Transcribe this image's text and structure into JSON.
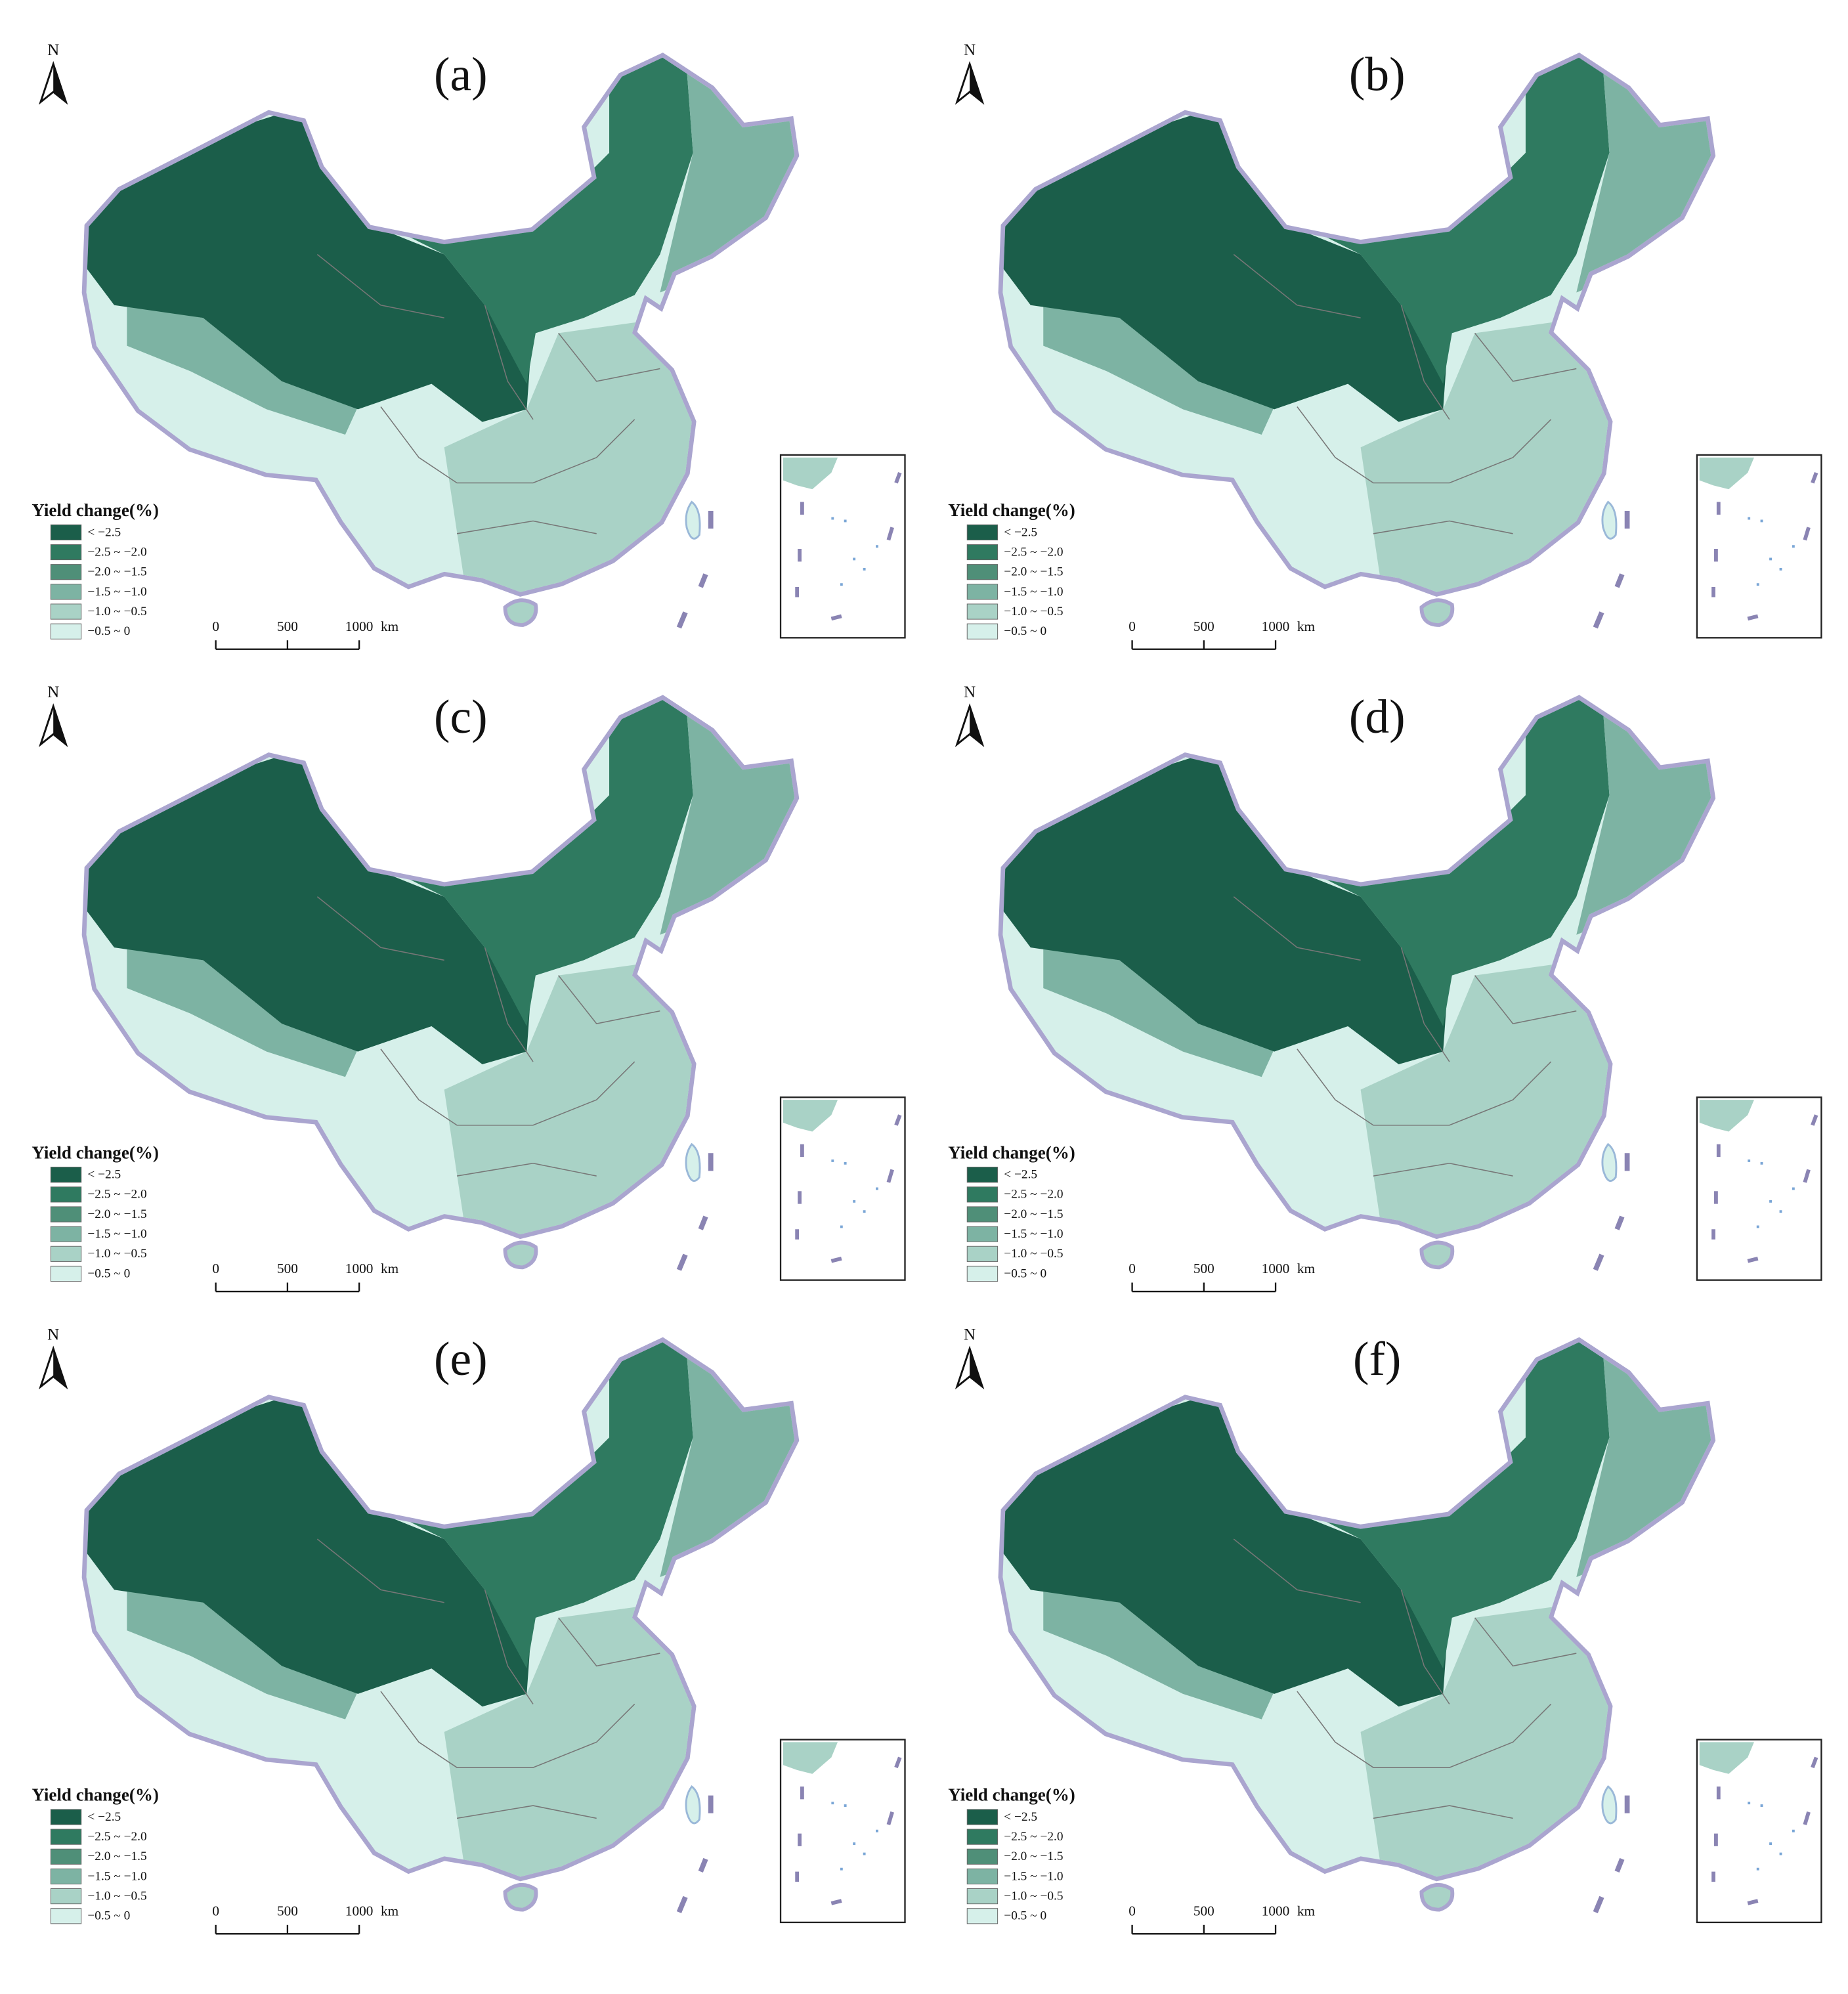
{
  "panels": [
    {
      "label": "(a)"
    },
    {
      "label": "(b)"
    },
    {
      "label": "(c)"
    },
    {
      "label": "(d)"
    },
    {
      "label": "(e)"
    },
    {
      "label": "(f)"
    }
  ],
  "north": "N",
  "legend": {
    "title": "Yield change(%)",
    "items": [
      {
        "label": "< −2.5",
        "color": "#1b5e4a"
      },
      {
        "label": "−2.5 ~ −2.0",
        "color": "#2f7a60"
      },
      {
        "label": "−2.0 ~ −1.5",
        "color": "#4f8f78"
      },
      {
        "label": "−1.5 ~ −1.0",
        "color": "#7db3a3"
      },
      {
        "label": "−1.0 ~ −0.5",
        "color": "#a9d2c6"
      },
      {
        "label": "−0.5 ~ 0",
        "color": "#d6f0ea"
      }
    ]
  },
  "scale_bar": {
    "ticks": [
      0,
      500,
      1000
    ],
    "unit": "km"
  }
}
